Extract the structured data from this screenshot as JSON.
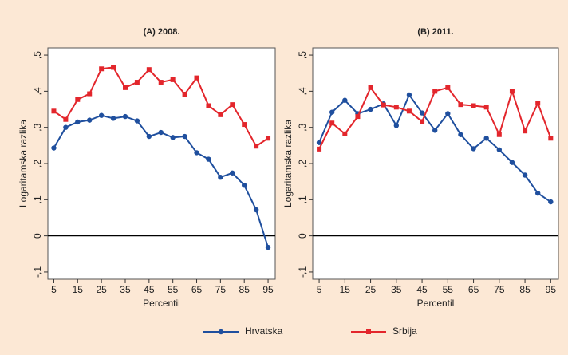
{
  "chart_data": [
    {
      "type": "line",
      "title": "(A) 2008.",
      "xlabel": "Percentil",
      "ylabel": "Logaritamska razlika",
      "x": [
        5,
        10,
        15,
        20,
        25,
        30,
        35,
        40,
        45,
        50,
        55,
        60,
        65,
        70,
        75,
        80,
        85,
        90,
        95
      ],
      "series": [
        {
          "name": "Hrvatska",
          "color": "#1f4f9e",
          "marker": "circle",
          "values": [
            0.243,
            0.3,
            0.315,
            0.32,
            0.333,
            0.325,
            0.33,
            0.318,
            0.275,
            0.286,
            0.272,
            0.275,
            0.23,
            0.212,
            0.162,
            0.174,
            0.14,
            0.072,
            -0.032
          ]
        },
        {
          "name": "Srbija",
          "color": "#e3262c",
          "marker": "square",
          "values": [
            0.345,
            0.322,
            0.377,
            0.393,
            0.462,
            0.466,
            0.41,
            0.425,
            0.46,
            0.425,
            0.432,
            0.392,
            0.437,
            0.36,
            0.335,
            0.363,
            0.308,
            0.248,
            0.27
          ]
        }
      ],
      "xlim": [
        2.5,
        98
      ],
      "xticks": [
        5,
        15,
        25,
        35,
        45,
        55,
        65,
        75,
        85,
        95
      ],
      "ylim": [
        -0.12,
        0.52
      ],
      "yticks": [
        {
          "value": -0.1,
          "label": "-,1"
        },
        0,
        {
          "value": 0.1,
          "label": ",1"
        },
        {
          "value": 0.2,
          "label": ",2"
        },
        {
          "value": 0.3,
          "label": ",3"
        },
        {
          "value": 0.4,
          "label": ",4"
        },
        {
          "value": 0.5,
          "label": ",5"
        }
      ],
      "reference_line": 0
    },
    {
      "type": "line",
      "title": "(B) 2011.",
      "xlabel": "Percentil",
      "ylabel": "Logaritamska razlika",
      "x": [
        5,
        10,
        15,
        20,
        25,
        30,
        35,
        40,
        45,
        50,
        55,
        60,
        65,
        70,
        75,
        80,
        85,
        90,
        95
      ],
      "series": [
        {
          "color": "#1f4f9e",
          "marker": "circle",
          "values": [
            0.258,
            0.342,
            0.375,
            0.338,
            0.35,
            0.365,
            0.305,
            0.39,
            0.34,
            0.292,
            0.338,
            0.28,
            0.241,
            0.27,
            0.238,
            0.203,
            0.168,
            0.118,
            0.094
          ]
        },
        {
          "color": "#e3262c",
          "marker": "square",
          "values": [
            0.24,
            0.312,
            0.282,
            0.33,
            0.41,
            0.362,
            0.356,
            0.345,
            0.316,
            0.4,
            0.41,
            0.363,
            0.36,
            0.356,
            0.28,
            0.4,
            0.29,
            0.367,
            0.27
          ]
        }
      ],
      "xlim": [
        2.5,
        98
      ],
      "xticks": [
        5,
        15,
        25,
        35,
        45,
        55,
        65,
        75,
        85,
        95
      ],
      "ylim": [
        -0.12,
        0.52
      ],
      "yticks": [
        {
          "value": -0.1,
          "label": "-,1"
        },
        0,
        {
          "value": 0.1,
          "label": ",1"
        },
        {
          "value": 0.2,
          "label": ",2"
        },
        {
          "value": 0.3,
          "label": ",3"
        },
        {
          "value": 0.4,
          "label": ",4"
        },
        {
          "value": 0.5,
          "label": ",5"
        }
      ],
      "reference_line": 0
    }
  ]
}
